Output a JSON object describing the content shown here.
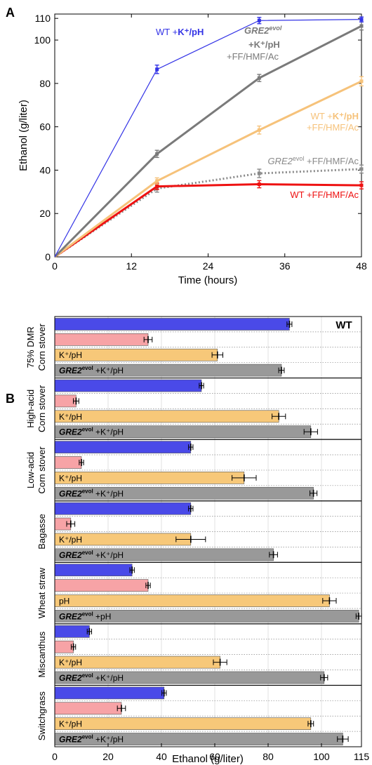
{
  "chart_data": [
    {
      "panel": "A",
      "type": "line",
      "xlabel": "Time (hours)",
      "ylabel": "Ethanol (g/liter)",
      "xlim": [
        0,
        48
      ],
      "ylim": [
        0,
        110
      ],
      "xticks": [
        0,
        12,
        24,
        36,
        48
      ],
      "yticks": [
        0,
        20,
        40,
        60,
        80,
        100,
        110
      ],
      "x": [
        0,
        16,
        32,
        48
      ],
      "series": [
        {
          "name": "WT +K⁺/pH",
          "color": "#3333e6",
          "style": "solid-thin",
          "values": [
            0,
            86.5,
            109,
            109.5
          ],
          "err": [
            0,
            1.3,
            0.8,
            0.5
          ]
        },
        {
          "name": "GRE2evol +K⁺/pH +FF/HMF/Ac",
          "color": "#7a7a7a",
          "style": "solid",
          "values": [
            0,
            47.5,
            82.5,
            106.5
          ],
          "err": [
            0,
            1.0,
            1.0,
            1.2
          ]
        },
        {
          "name": "WT +K⁺/pH +FF/HMF/Ac",
          "color": "#f6c27a",
          "style": "solid",
          "values": [
            0,
            35,
            58.5,
            81
          ],
          "err": [
            0,
            0.8,
            1.2,
            1.5
          ]
        },
        {
          "name": "GRE2evol +FF/HMF/Ac",
          "color": "#8a8a8a",
          "style": "dotted",
          "values": [
            0,
            31.5,
            38.5,
            40.5
          ],
          "err": [
            0,
            1.0,
            1.3,
            1.2
          ]
        },
        {
          "name": "WT +FF/HMF/Ac",
          "color": "#ee1111",
          "style": "solid",
          "values": [
            0,
            32.5,
            33.5,
            33
          ],
          "err": [
            0,
            0.8,
            1.0,
            1.0
          ]
        }
      ],
      "labels": {
        "wt_kph_plain": "WT +",
        "wt_kph_bold": "K⁺/pH",
        "gre2_kph_ff_1": "GRE2",
        "gre2_kph_ff_1_sup": "evol",
        "gre2_kph_ff_2": "+K⁺/pH",
        "gre2_kph_ff_3": "+FF/HMF/Ac",
        "wt_kph_ff_1a": "WT +",
        "wt_kph_ff_1b": "K⁺/pH",
        "wt_kph_ff_2": "+FF/HMF/Ac",
        "gre2_ff_1": "GRE2",
        "gre2_ff_sup": "evol",
        "gre2_ff_2": " +FF/HMF/Ac",
        "wt_ff": "WT +FF/HMF/Ac"
      }
    },
    {
      "panel": "B",
      "type": "bar",
      "orientation": "horizontal",
      "xlabel": "Ethanol (g/liter)",
      "xlim": [
        0,
        115
      ],
      "xticks": [
        0,
        20,
        40,
        60,
        80,
        100,
        115
      ],
      "legend_label": "WT",
      "colors": {
        "blue": "#4a4ae8",
        "pink": "#f7a3a6",
        "orange": "#f7c879",
        "gray": "#999999"
      },
      "groups": [
        {
          "label_1": "75% DMR",
          "label_2": "Corn stover",
          "bars": [
            {
              "color": "blue",
              "value": 88,
              "err": 0.4,
              "text": ""
            },
            {
              "color": "pink",
              "value": 35,
              "err": 1.0,
              "text": ""
            },
            {
              "color": "orange",
              "value": 61,
              "err": 1.5,
              "text": "K⁺/pH"
            },
            {
              "color": "gray",
              "value": 85,
              "err": 0.5,
              "text": "+K⁺/pH",
              "gre2": true
            }
          ]
        },
        {
          "label_1": "High-acid",
          "label_2": "Corn stover",
          "bars": [
            {
              "color": "blue",
              "value": 55,
              "err": 0.3,
              "text": ""
            },
            {
              "color": "pink",
              "value": 8,
              "err": 0.5,
              "text": ""
            },
            {
              "color": "orange",
              "value": 84,
              "err": 2.0,
              "text": "K⁺/pH"
            },
            {
              "color": "gray",
              "value": 96,
              "err": 2.0,
              "text": "+K⁺/pH",
              "gre2": true
            }
          ]
        },
        {
          "label_1": "Low-acid",
          "label_2": "Corn stover",
          "bars": [
            {
              "color": "blue",
              "value": 51,
              "err": 0.3,
              "text": ""
            },
            {
              "color": "pink",
              "value": 10,
              "err": 0.3,
              "text": ""
            },
            {
              "color": "orange",
              "value": 71,
              "err": 4.0,
              "text": "K⁺/pH"
            },
            {
              "color": "gray",
              "value": 97,
              "err": 0.8,
              "text": "+K⁺/pH",
              "gre2": true
            }
          ]
        },
        {
          "label_1": "Bagasse",
          "label_2": "",
          "bars": [
            {
              "color": "blue",
              "value": 51,
              "err": 0.3,
              "text": ""
            },
            {
              "color": "pink",
              "value": 6,
              "err": 1.0,
              "text": ""
            },
            {
              "color": "orange",
              "value": 51,
              "err": 5.0,
              "text": "K⁺/pH"
            },
            {
              "color": "gray",
              "value": 82,
              "err": 1.0,
              "text": "+K⁺/pH",
              "gre2": true
            }
          ]
        },
        {
          "label_1": "Wheat straw",
          "label_2": "",
          "bars": [
            {
              "color": "blue",
              "value": 29,
              "err": 0.3,
              "text": ""
            },
            {
              "color": "pink",
              "value": 35,
              "err": 0.3,
              "text": ""
            },
            {
              "color": "orange",
              "value": 103,
              "err": 2.0,
              "text": "pH"
            },
            {
              "color": "gray",
              "value": 114,
              "err": 0.5,
              "text": "+pH",
              "gre2": true
            }
          ]
        },
        {
          "label_1": "Miscanthus",
          "label_2": "",
          "bars": [
            {
              "color": "blue",
              "value": 13,
              "err": 0.3,
              "text": ""
            },
            {
              "color": "pink",
              "value": 7,
              "err": 0.3,
              "text": ""
            },
            {
              "color": "orange",
              "value": 62,
              "err": 2.0,
              "text": "K⁺/pH"
            },
            {
              "color": "gray",
              "value": 101,
              "err": 0.8,
              "text": "+K⁺/pH",
              "gre2": true
            }
          ]
        },
        {
          "label_1": "Switchgrass",
          "label_2": "",
          "bars": [
            {
              "color": "blue",
              "value": 41,
              "err": 0.3,
              "text": ""
            },
            {
              "color": "pink",
              "value": 25,
              "err": 1.0,
              "text": ""
            },
            {
              "color": "orange",
              "value": 96,
              "err": 0.5,
              "text": "K⁺/pH"
            },
            {
              "color": "gray",
              "value": 108,
              "err": 1.5,
              "text": "+K⁺/pH",
              "gre2": true
            }
          ]
        }
      ],
      "gre2_prefix": "GRE2",
      "gre2_sup": "evol"
    }
  ],
  "panel_letters": [
    "A",
    "B"
  ]
}
